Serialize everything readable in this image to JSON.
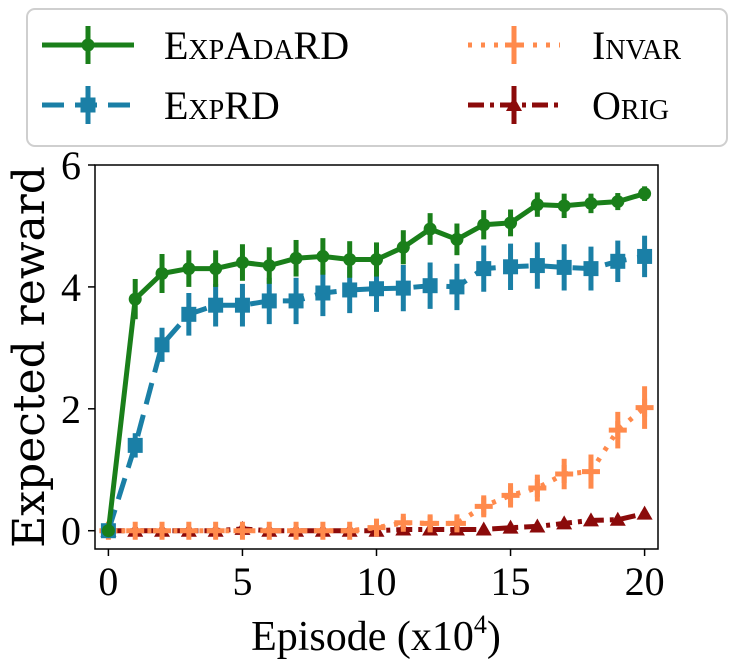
{
  "chart_data": {
    "type": "line",
    "title": "",
    "xlabel": "Episode (x10",
    "xlabel_sup": "4",
    "xlabel_close": ")",
    "ylabel": "Expected reward",
    "xlim": [
      -0.5,
      20.5
    ],
    "ylim": [
      -0.3,
      6.0
    ],
    "xticks": [
      0,
      5,
      10,
      15,
      20
    ],
    "xtick_labels": [
      "0",
      "5",
      "10",
      "15",
      "20"
    ],
    "yticks": [
      0,
      2,
      4,
      6
    ],
    "ytick_labels": [
      "0",
      "2",
      "4",
      "6"
    ],
    "grid": false,
    "legend_position": "top",
    "x": [
      0,
      1,
      2,
      3,
      4,
      5,
      6,
      7,
      8,
      9,
      10,
      11,
      12,
      13,
      14,
      15,
      16,
      17,
      18,
      19,
      20
    ],
    "series": [
      {
        "name": "ExpAdaRD",
        "color": "#1a7f1a",
        "dash": "",
        "marker": "circle",
        "values": [
          0,
          3.8,
          4.22,
          4.3,
          4.3,
          4.4,
          4.35,
          4.47,
          4.5,
          4.45,
          4.45,
          4.65,
          4.95,
          4.78,
          5.02,
          5.05,
          5.35,
          5.33,
          5.37,
          5.4,
          5.53
        ],
        "errors": [
          0.02,
          0.33,
          0.32,
          0.3,
          0.3,
          0.3,
          0.3,
          0.3,
          0.3,
          0.3,
          0.28,
          0.28,
          0.26,
          0.26,
          0.24,
          0.22,
          0.2,
          0.2,
          0.16,
          0.14,
          0.12
        ]
      },
      {
        "name": "ExpRD",
        "color": "#1a7fa6",
        "dash": "22,11",
        "marker": "square",
        "values": [
          0,
          1.4,
          3.05,
          3.55,
          3.7,
          3.7,
          3.77,
          3.77,
          3.9,
          3.95,
          3.97,
          3.98,
          4.02,
          4.0,
          4.3,
          4.33,
          4.35,
          4.32,
          4.3,
          4.42,
          4.5
        ],
        "errors": [
          0.02,
          0.2,
          0.28,
          0.35,
          0.35,
          0.35,
          0.38,
          0.38,
          0.38,
          0.38,
          0.38,
          0.38,
          0.38,
          0.38,
          0.38,
          0.38,
          0.38,
          0.38,
          0.36,
          0.34,
          0.34
        ]
      },
      {
        "name": "Invar",
        "color": "#ff8a4c",
        "dash": "4,9",
        "marker": "plus",
        "values": [
          0,
          0,
          0,
          0,
          0,
          0,
          0,
          0,
          0,
          0,
          0.05,
          0.13,
          0.12,
          0.12,
          0.4,
          0.58,
          0.7,
          0.93,
          0.97,
          1.65,
          2.02
        ],
        "errors": [
          0.02,
          0.02,
          0.02,
          0.02,
          0.02,
          0.02,
          0.02,
          0.02,
          0.02,
          0.02,
          0.06,
          0.1,
          0.12,
          0.12,
          0.18,
          0.2,
          0.22,
          0.25,
          0.28,
          0.3,
          0.35
        ]
      },
      {
        "name": "Orig",
        "color": "#8b0a0a",
        "dash": "16,6,4,6",
        "marker": "triangle",
        "values": [
          0,
          0,
          0,
          0,
          0,
          0.03,
          0,
          0,
          0,
          0,
          0,
          0.02,
          0.02,
          0.02,
          0.02,
          0.05,
          0.07,
          0.12,
          0.17,
          0.18,
          0.28
        ],
        "errors": [
          0.02,
          0.02,
          0.02,
          0.02,
          0.02,
          0.02,
          0.02,
          0.02,
          0.02,
          0.02,
          0.02,
          0.02,
          0.02,
          0.02,
          0.02,
          0.02,
          0.03,
          0.03,
          0.03,
          0.03,
          0.04
        ]
      }
    ]
  }
}
